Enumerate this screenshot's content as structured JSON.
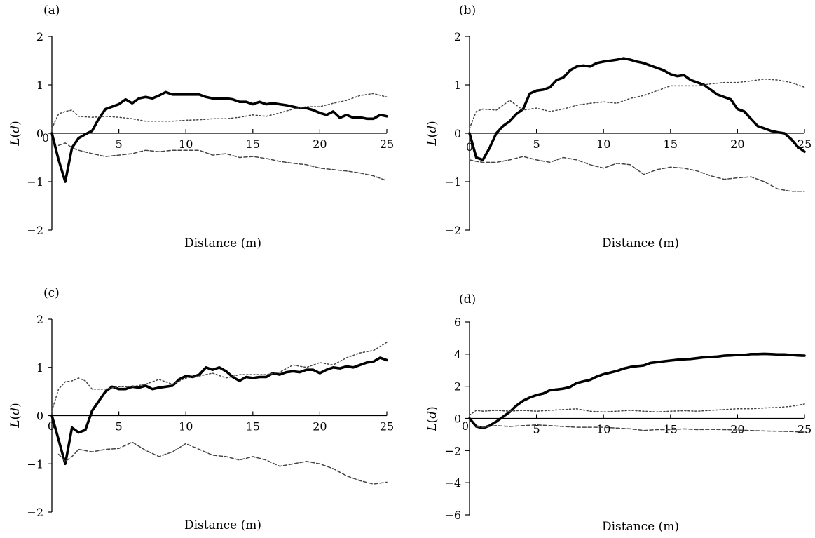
{
  "chart_data": [
    {
      "type": "line",
      "panel_label": "(a)",
      "xlabel": "Distance (m)",
      "ylabel_main": "L",
      "ylabel_var": "d",
      "xlim": [
        0,
        25
      ],
      "ylim": [
        -2,
        2
      ],
      "xticks": [
        5,
        10,
        15,
        20,
        25
      ],
      "yticks": [
        -2,
        -1,
        0,
        1,
        2
      ],
      "ytick_labels": [
        "−2",
        "−1",
        "0",
        "1",
        "2"
      ],
      "origin_label": "0",
      "series": [
        {
          "style": "solid",
          "x": [
            0,
            0.5,
            1,
            1.5,
            2,
            2.5,
            3,
            3.5,
            4,
            4.5,
            5,
            5.5,
            6,
            6.5,
            7,
            7.5,
            8,
            8.5,
            9,
            9.5,
            10,
            10.5,
            11,
            11.5,
            12,
            12.5,
            13,
            13.5,
            14,
            14.5,
            15,
            15.5,
            16,
            16.5,
            17,
            17.5,
            18,
            18.5,
            19,
            19.5,
            20,
            20.5,
            21,
            21.5,
            22,
            22.5,
            23,
            23.5,
            24,
            24.5,
            25
          ],
          "values": [
            0,
            -0.55,
            -1.0,
            -0.3,
            -0.1,
            -0.02,
            0.05,
            0.3,
            0.5,
            0.55,
            0.6,
            0.7,
            0.62,
            0.72,
            0.75,
            0.72,
            0.78,
            0.85,
            0.8,
            0.8,
            0.8,
            0.8,
            0.8,
            0.75,
            0.72,
            0.72,
            0.72,
            0.7,
            0.65,
            0.65,
            0.6,
            0.65,
            0.6,
            0.62,
            0.6,
            0.58,
            0.55,
            0.52,
            0.52,
            0.48,
            0.42,
            0.38,
            0.45,
            0.32,
            0.38,
            0.32,
            0.33,
            0.3,
            0.3,
            0.38,
            0.35
          ]
        },
        {
          "style": "dotted",
          "x": [
            0,
            0.5,
            1,
            1.5,
            2,
            3,
            4,
            5,
            6,
            7,
            8,
            9,
            10,
            11,
            12,
            13,
            14,
            15,
            16,
            17,
            18,
            19,
            20,
            21,
            22,
            23,
            24,
            25
          ],
          "values": [
            0.1,
            0.4,
            0.45,
            0.48,
            0.35,
            0.33,
            0.35,
            0.33,
            0.3,
            0.25,
            0.25,
            0.25,
            0.27,
            0.28,
            0.3,
            0.3,
            0.33,
            0.38,
            0.35,
            0.42,
            0.5,
            0.55,
            0.55,
            0.62,
            0.68,
            0.78,
            0.82,
            0.75
          ]
        },
        {
          "style": "dashed",
          "x": [
            0.5,
            1,
            1.5,
            2,
            3,
            4,
            5,
            6,
            7,
            8,
            9,
            10,
            11,
            12,
            13,
            14,
            15,
            16,
            17,
            18,
            19,
            20,
            21,
            22,
            23,
            24,
            25
          ],
          "values": [
            -0.25,
            -0.2,
            -0.3,
            -0.35,
            -0.42,
            -0.48,
            -0.45,
            -0.42,
            -0.35,
            -0.38,
            -0.35,
            -0.35,
            -0.35,
            -0.45,
            -0.42,
            -0.5,
            -0.48,
            -0.52,
            -0.58,
            -0.62,
            -0.65,
            -0.72,
            -0.75,
            -0.78,
            -0.82,
            -0.88,
            -0.98
          ]
        }
      ]
    },
    {
      "type": "line",
      "panel_label": "(b)",
      "xlabel": "Distance (m)",
      "ylabel_main": "L",
      "ylabel_var": "d",
      "xlim": [
        0,
        25
      ],
      "ylim": [
        -2,
        2
      ],
      "xticks": [
        5,
        10,
        15,
        20,
        25
      ],
      "yticks": [
        -2,
        -1,
        0,
        1,
        2
      ],
      "ytick_labels": [
        "−2",
        "−1",
        "0",
        "1",
        "2"
      ],
      "origin_label": "0",
      "series": [
        {
          "style": "solid",
          "x": [
            0,
            0.5,
            1,
            1.5,
            2,
            2.5,
            3,
            3.5,
            4,
            4.5,
            5,
            5.5,
            6,
            6.5,
            7,
            7.5,
            8,
            8.5,
            9,
            9.5,
            10,
            10.5,
            11,
            11.5,
            12,
            12.5,
            13,
            13.5,
            14,
            14.5,
            15,
            15.5,
            16,
            16.5,
            17,
            17.5,
            18,
            18.5,
            19,
            19.5,
            20,
            20.5,
            21,
            21.5,
            22,
            22.5,
            23,
            23.5,
            24,
            24.5,
            25
          ],
          "values": [
            0,
            -0.5,
            -0.55,
            -0.3,
            0,
            0.15,
            0.25,
            0.4,
            0.5,
            0.82,
            0.88,
            0.9,
            0.95,
            1.1,
            1.15,
            1.3,
            1.38,
            1.4,
            1.38,
            1.45,
            1.48,
            1.5,
            1.52,
            1.55,
            1.52,
            1.48,
            1.45,
            1.4,
            1.35,
            1.3,
            1.22,
            1.18,
            1.2,
            1.1,
            1.05,
            1.0,
            0.9,
            0.8,
            0.75,
            0.7,
            0.5,
            0.45,
            0.3,
            0.15,
            0.1,
            0.05,
            0.02,
            0,
            -0.12,
            -0.28,
            -0.38
          ]
        },
        {
          "style": "dotted",
          "x": [
            0,
            0.5,
            1,
            2,
            3,
            4,
            5,
            6,
            7,
            8,
            9,
            10,
            11,
            12,
            13,
            14,
            15,
            16,
            17,
            18,
            19,
            20,
            21,
            22,
            23,
            24,
            25
          ],
          "values": [
            0.1,
            0.45,
            0.5,
            0.48,
            0.68,
            0.48,
            0.52,
            0.45,
            0.5,
            0.58,
            0.62,
            0.65,
            0.62,
            0.72,
            0.78,
            0.88,
            0.98,
            0.98,
            0.98,
            1.02,
            1.05,
            1.05,
            1.08,
            1.12,
            1.1,
            1.05,
            0.95
          ]
        },
        {
          "style": "dashed",
          "x": [
            0,
            0.5,
            1,
            2,
            3,
            4,
            5,
            6,
            7,
            8,
            9,
            10,
            11,
            12,
            13,
            14,
            15,
            16,
            17,
            18,
            19,
            20,
            21,
            22,
            23,
            24,
            25
          ],
          "values": [
            -0.55,
            -0.58,
            -0.6,
            -0.6,
            -0.55,
            -0.48,
            -0.55,
            -0.6,
            -0.5,
            -0.55,
            -0.65,
            -0.72,
            -0.62,
            -0.65,
            -0.85,
            -0.75,
            -0.7,
            -0.72,
            -0.78,
            -0.88,
            -0.95,
            -0.92,
            -0.9,
            -1.0,
            -1.15,
            -1.2,
            -1.2
          ]
        }
      ]
    },
    {
      "type": "line",
      "panel_label": "(c)",
      "xlabel": "Distance (m)",
      "ylabel_main": "L",
      "ylabel_var": "d",
      "xlim": [
        0,
        25
      ],
      "ylim": [
        -2,
        2
      ],
      "xticks": [
        5,
        10,
        15,
        20,
        25
      ],
      "yticks": [
        -2,
        -1,
        0,
        1,
        2
      ],
      "ytick_labels": [
        "−2",
        "−1",
        "0",
        "1",
        "2"
      ],
      "origin_label": "0",
      "series": [
        {
          "style": "solid",
          "x": [
            0,
            0.5,
            1,
            1.5,
            2,
            2.5,
            3,
            3.5,
            4,
            4.5,
            5,
            5.5,
            6,
            6.5,
            7,
            7.5,
            8,
            8.5,
            9,
            9.5,
            10,
            10.5,
            11,
            11.5,
            12,
            12.5,
            13,
            13.5,
            14,
            14.5,
            15,
            15.5,
            16,
            16.5,
            17,
            17.5,
            18,
            18.5,
            19,
            19.5,
            20,
            20.5,
            21,
            21.5,
            22,
            22.5,
            23,
            23.5,
            24,
            24.5,
            25
          ],
          "values": [
            0,
            -0.5,
            -1.0,
            -0.25,
            -0.35,
            -0.3,
            0.1,
            0.3,
            0.5,
            0.6,
            0.55,
            0.55,
            0.6,
            0.58,
            0.62,
            0.55,
            0.58,
            0.6,
            0.62,
            0.75,
            0.82,
            0.8,
            0.85,
            1.0,
            0.95,
            1.0,
            0.92,
            0.8,
            0.72,
            0.8,
            0.78,
            0.8,
            0.8,
            0.88,
            0.85,
            0.9,
            0.92,
            0.9,
            0.95,
            0.95,
            0.88,
            0.95,
            1.0,
            0.98,
            1.02,
            1.0,
            1.05,
            1.1,
            1.12,
            1.2,
            1.15
          ]
        },
        {
          "style": "dotted",
          "x": [
            0,
            0.5,
            1,
            1.5,
            2,
            2.5,
            3,
            4,
            5,
            6,
            7,
            8,
            9,
            10,
            11,
            12,
            13,
            14,
            15,
            16,
            17,
            18,
            19,
            20,
            21,
            22,
            23,
            24,
            25
          ],
          "values": [
            0.1,
            0.55,
            0.7,
            0.72,
            0.78,
            0.72,
            0.55,
            0.55,
            0.6,
            0.6,
            0.65,
            0.75,
            0.65,
            0.78,
            0.82,
            0.88,
            0.78,
            0.85,
            0.85,
            0.85,
            0.9,
            1.05,
            1.0,
            1.1,
            1.05,
            1.2,
            1.3,
            1.35,
            1.52
          ]
        },
        {
          "style": "dashed",
          "x": [
            0.5,
            1,
            1.5,
            2,
            3,
            4,
            5,
            6,
            7,
            8,
            9,
            10,
            11,
            12,
            13,
            14,
            15,
            16,
            17,
            18,
            19,
            20,
            21,
            22,
            23,
            24,
            25
          ],
          "values": [
            -0.8,
            -0.95,
            -0.85,
            -0.7,
            -0.75,
            -0.7,
            -0.68,
            -0.55,
            -0.72,
            -0.85,
            -0.75,
            -0.58,
            -0.7,
            -0.82,
            -0.85,
            -0.92,
            -0.85,
            -0.92,
            -1.05,
            -1.0,
            -0.95,
            -1.0,
            -1.1,
            -1.25,
            -1.35,
            -1.42,
            -1.38
          ]
        }
      ]
    },
    {
      "type": "line",
      "panel_label": "(d)",
      "xlabel": "Distance (m)",
      "ylabel_main": "L",
      "ylabel_var": "d",
      "xlim": [
        0,
        25
      ],
      "ylim": [
        -6,
        6
      ],
      "xticks": [
        5,
        10,
        15,
        20,
        25
      ],
      "yticks": [
        -6,
        -4,
        -2,
        0,
        2,
        4,
        6
      ],
      "ytick_labels": [
        "−6",
        "−4",
        "−2",
        "0",
        "2",
        "4",
        "6"
      ],
      "origin_label": "0",
      "series": [
        {
          "style": "solid",
          "x": [
            0,
            0.5,
            1,
            1.5,
            2,
            2.5,
            3,
            3.5,
            4,
            4.5,
            5,
            5.5,
            6,
            6.5,
            7,
            7.5,
            8,
            8.5,
            9,
            9.5,
            10,
            10.5,
            11,
            11.5,
            12,
            12.5,
            13,
            13.5,
            14,
            14.5,
            15,
            15.5,
            16,
            16.5,
            17,
            17.5,
            18,
            18.5,
            19,
            19.5,
            20,
            20.5,
            21,
            21.5,
            22,
            22.5,
            23,
            23.5,
            24,
            24.5,
            25
          ],
          "values": [
            0,
            -0.5,
            -0.6,
            -0.45,
            -0.2,
            0.1,
            0.4,
            0.8,
            1.1,
            1.3,
            1.45,
            1.55,
            1.75,
            1.8,
            1.85,
            1.95,
            2.2,
            2.3,
            2.4,
            2.6,
            2.75,
            2.85,
            2.95,
            3.1,
            3.2,
            3.25,
            3.3,
            3.45,
            3.5,
            3.55,
            3.6,
            3.65,
            3.68,
            3.7,
            3.75,
            3.8,
            3.82,
            3.85,
            3.9,
            3.92,
            3.95,
            3.95,
            4.0,
            4.0,
            4.02,
            4.0,
            3.98,
            3.98,
            3.95,
            3.92,
            3.9
          ]
        },
        {
          "style": "dotted",
          "x": [
            0,
            0.5,
            1,
            2,
            3,
            4,
            5,
            6,
            7,
            8,
            9,
            10,
            11,
            12,
            13,
            14,
            15,
            16,
            17,
            18,
            19,
            20,
            21,
            22,
            23,
            24,
            25
          ],
          "values": [
            0.2,
            0.5,
            0.45,
            0.5,
            0.45,
            0.5,
            0.45,
            0.5,
            0.55,
            0.6,
            0.45,
            0.4,
            0.45,
            0.5,
            0.45,
            0.4,
            0.45,
            0.48,
            0.45,
            0.5,
            0.55,
            0.6,
            0.6,
            0.65,
            0.68,
            0.75,
            0.9
          ]
        },
        {
          "style": "dashed",
          "x": [
            0.5,
            1,
            2,
            3,
            4,
            5,
            6,
            7,
            8,
            9,
            10,
            11,
            12,
            13,
            14,
            15,
            16,
            17,
            18,
            19,
            20,
            21,
            22,
            23,
            24,
            25
          ],
          "values": [
            -0.5,
            -0.55,
            -0.45,
            -0.5,
            -0.45,
            -0.4,
            -0.45,
            -0.5,
            -0.55,
            -0.55,
            -0.55,
            -0.6,
            -0.65,
            -0.75,
            -0.7,
            -0.7,
            -0.65,
            -0.7,
            -0.68,
            -0.7,
            -0.72,
            -0.75,
            -0.78,
            -0.8,
            -0.82,
            -0.85
          ]
        }
      ]
    }
  ]
}
